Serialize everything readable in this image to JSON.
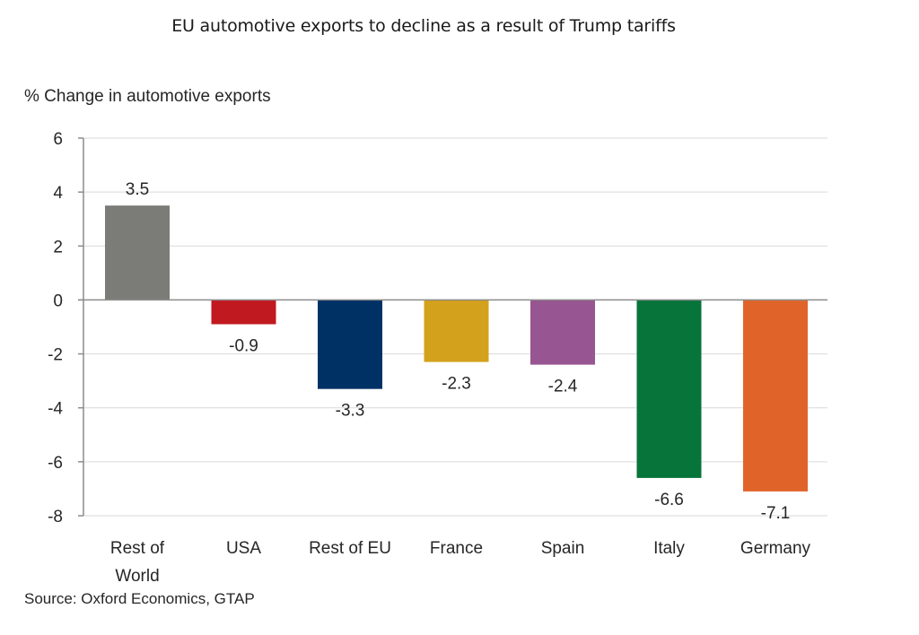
{
  "chart_data": {
    "type": "bar",
    "title": "EU automotive exports to decline as a result of Trump tariffs",
    "xlabel": "",
    "ylabel": "% Change in automotive exports",
    "ylim": [
      -8,
      6
    ],
    "yticks": [
      6,
      4,
      2,
      0,
      -2,
      -4,
      -6,
      -8
    ],
    "ytick_labels": [
      "6",
      "4",
      "2",
      "0",
      "-2",
      "-4",
      "-6",
      "-8"
    ],
    "grid": true,
    "categories": [
      "Rest of World",
      "USA",
      "Rest of EU",
      "France",
      "Spain",
      "Italy",
      "Germany"
    ],
    "category_label_lines": [
      [
        "Rest of",
        "World"
      ],
      [
        "USA"
      ],
      [
        "Rest of EU"
      ],
      [
        "France"
      ],
      [
        "Spain"
      ],
      [
        "Italy"
      ],
      [
        "Germany"
      ]
    ],
    "values": [
      3.5,
      -0.9,
      -3.3,
      -2.3,
      -2.4,
      -6.6,
      -7.1
    ],
    "data_labels": [
      "3.5",
      "-0.9",
      "-3.3",
      "-2.3",
      "-2.4",
      "-6.6",
      "-7.1"
    ],
    "colors": [
      "#7b7b77",
      "#c0191f",
      "#003165",
      "#d4a11c",
      "#975591",
      "#07743a",
      "#e0642a"
    ],
    "source": "Source: Oxford Economics, GTAP"
  }
}
